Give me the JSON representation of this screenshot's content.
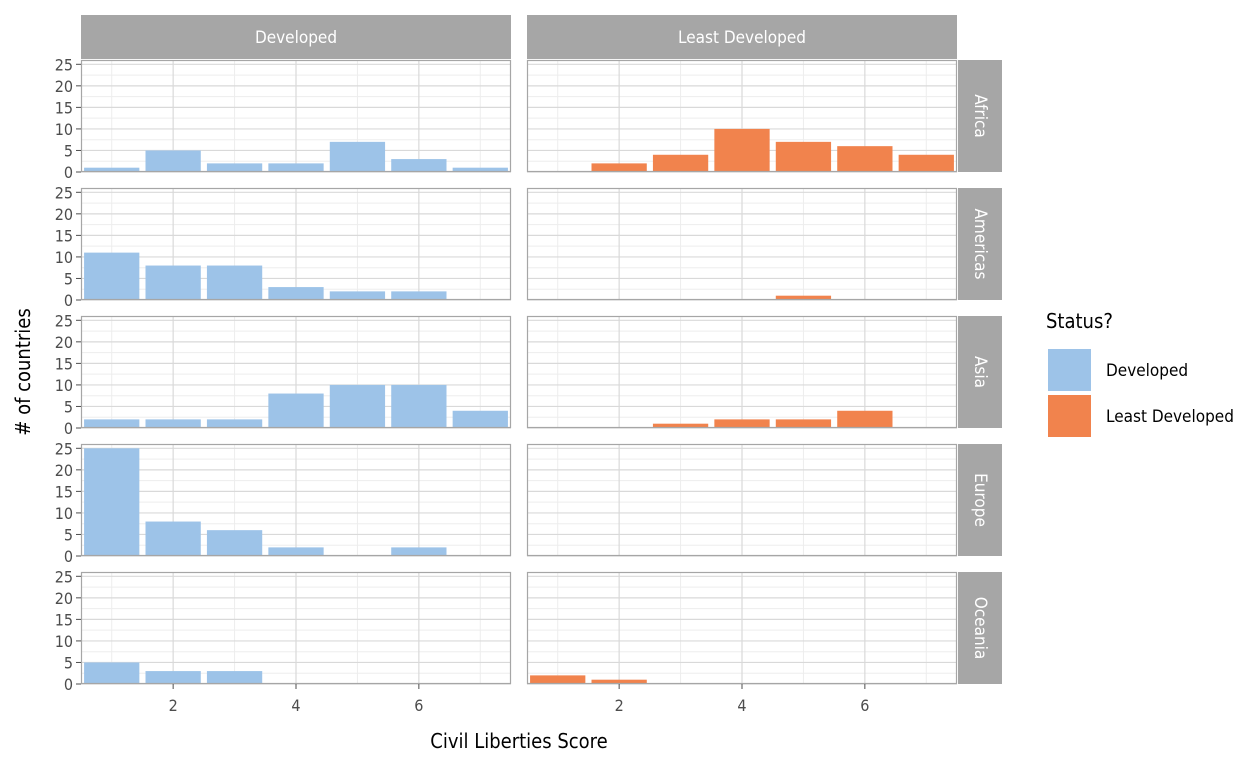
{
  "chart_data": {
    "type": "bar",
    "facet_columns": [
      "Developed",
      "Least Developed"
    ],
    "facet_rows": [
      "Africa",
      "Americas",
      "Asia",
      "Europe",
      "Oceania"
    ],
    "xlabel": "Civil Liberties Score",
    "ylabel": "# of countries",
    "x_ticks": [
      2,
      4,
      6
    ],
    "x_range": [
      0.5,
      7.5
    ],
    "y_ticks": [
      0,
      5,
      10,
      15,
      20,
      25
    ],
    "ylim": [
      0,
      26
    ],
    "legend": {
      "title": "Status?",
      "position": "right",
      "entries": [
        {
          "label": "Developed",
          "color": "#9dc3e8"
        },
        {
          "label": "Least Developed",
          "color": "#f1834d"
        }
      ]
    },
    "panels": [
      {
        "column": "Developed",
        "row": "Africa",
        "bars": [
          {
            "x": 1,
            "y": 1
          },
          {
            "x": 2,
            "y": 5
          },
          {
            "x": 3,
            "y": 2
          },
          {
            "x": 4,
            "y": 2
          },
          {
            "x": 5,
            "y": 7
          },
          {
            "x": 6,
            "y": 3
          },
          {
            "x": 7,
            "y": 1
          }
        ]
      },
      {
        "column": "Least Developed",
        "row": "Africa",
        "bars": [
          {
            "x": 2,
            "y": 2
          },
          {
            "x": 3,
            "y": 4
          },
          {
            "x": 4,
            "y": 10
          },
          {
            "x": 5,
            "y": 7
          },
          {
            "x": 6,
            "y": 6
          },
          {
            "x": 7,
            "y": 4
          }
        ]
      },
      {
        "column": "Developed",
        "row": "Americas",
        "bars": [
          {
            "x": 1,
            "y": 11
          },
          {
            "x": 2,
            "y": 8
          },
          {
            "x": 3,
            "y": 8
          },
          {
            "x": 4,
            "y": 3
          },
          {
            "x": 5,
            "y": 2
          },
          {
            "x": 6,
            "y": 2
          }
        ]
      },
      {
        "column": "Least Developed",
        "row": "Americas",
        "bars": [
          {
            "x": 5,
            "y": 1
          }
        ]
      },
      {
        "column": "Developed",
        "row": "Asia",
        "bars": [
          {
            "x": 1,
            "y": 2
          },
          {
            "x": 2,
            "y": 2
          },
          {
            "x": 3,
            "y": 2
          },
          {
            "x": 4,
            "y": 8
          },
          {
            "x": 5,
            "y": 10
          },
          {
            "x": 6,
            "y": 10
          },
          {
            "x": 7,
            "y": 4
          }
        ]
      },
      {
        "column": "Least Developed",
        "row": "Asia",
        "bars": [
          {
            "x": 3,
            "y": 1
          },
          {
            "x": 4,
            "y": 2
          },
          {
            "x": 5,
            "y": 2
          },
          {
            "x": 6,
            "y": 4
          }
        ]
      },
      {
        "column": "Developed",
        "row": "Europe",
        "bars": [
          {
            "x": 1,
            "y": 25
          },
          {
            "x": 2,
            "y": 8
          },
          {
            "x": 3,
            "y": 6
          },
          {
            "x": 4,
            "y": 2
          },
          {
            "x": 6,
            "y": 2
          }
        ]
      },
      {
        "column": "Least Developed",
        "row": "Europe",
        "bars": []
      },
      {
        "column": "Developed",
        "row": "Oceania",
        "bars": [
          {
            "x": 1,
            "y": 5
          },
          {
            "x": 2,
            "y": 3
          },
          {
            "x": 3,
            "y": 3
          }
        ]
      },
      {
        "column": "Least Developed",
        "row": "Oceania",
        "bars": [
          {
            "x": 1,
            "y": 2
          },
          {
            "x": 2,
            "y": 1
          }
        ]
      }
    ]
  }
}
